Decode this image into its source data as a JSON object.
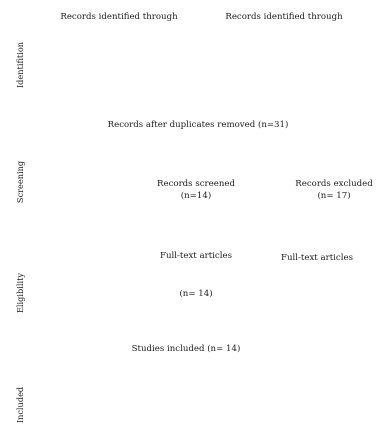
{
  "stages": {
    "identification": "Identifition",
    "screening": "Screening",
    "eligibility": "Eligibility",
    "included": "Included"
  },
  "identification": {
    "left_box": "Records identified through",
    "right_box": "Records identified through"
  },
  "screening": {
    "duplicates_removed": "Records after duplicates removed (n=31)",
    "screened_label": "Records screened",
    "screened_count": "(n=14)",
    "excluded_label": "Records excluded",
    "excluded_count": "(n= 17)"
  },
  "eligibility": {
    "fulltext_left_label": "Full-text articles",
    "fulltext_left_count": "(n= 14)",
    "fulltext_right_label": "Full-text articles"
  },
  "included": {
    "studies_included": "Studies included (n= 14)"
  }
}
